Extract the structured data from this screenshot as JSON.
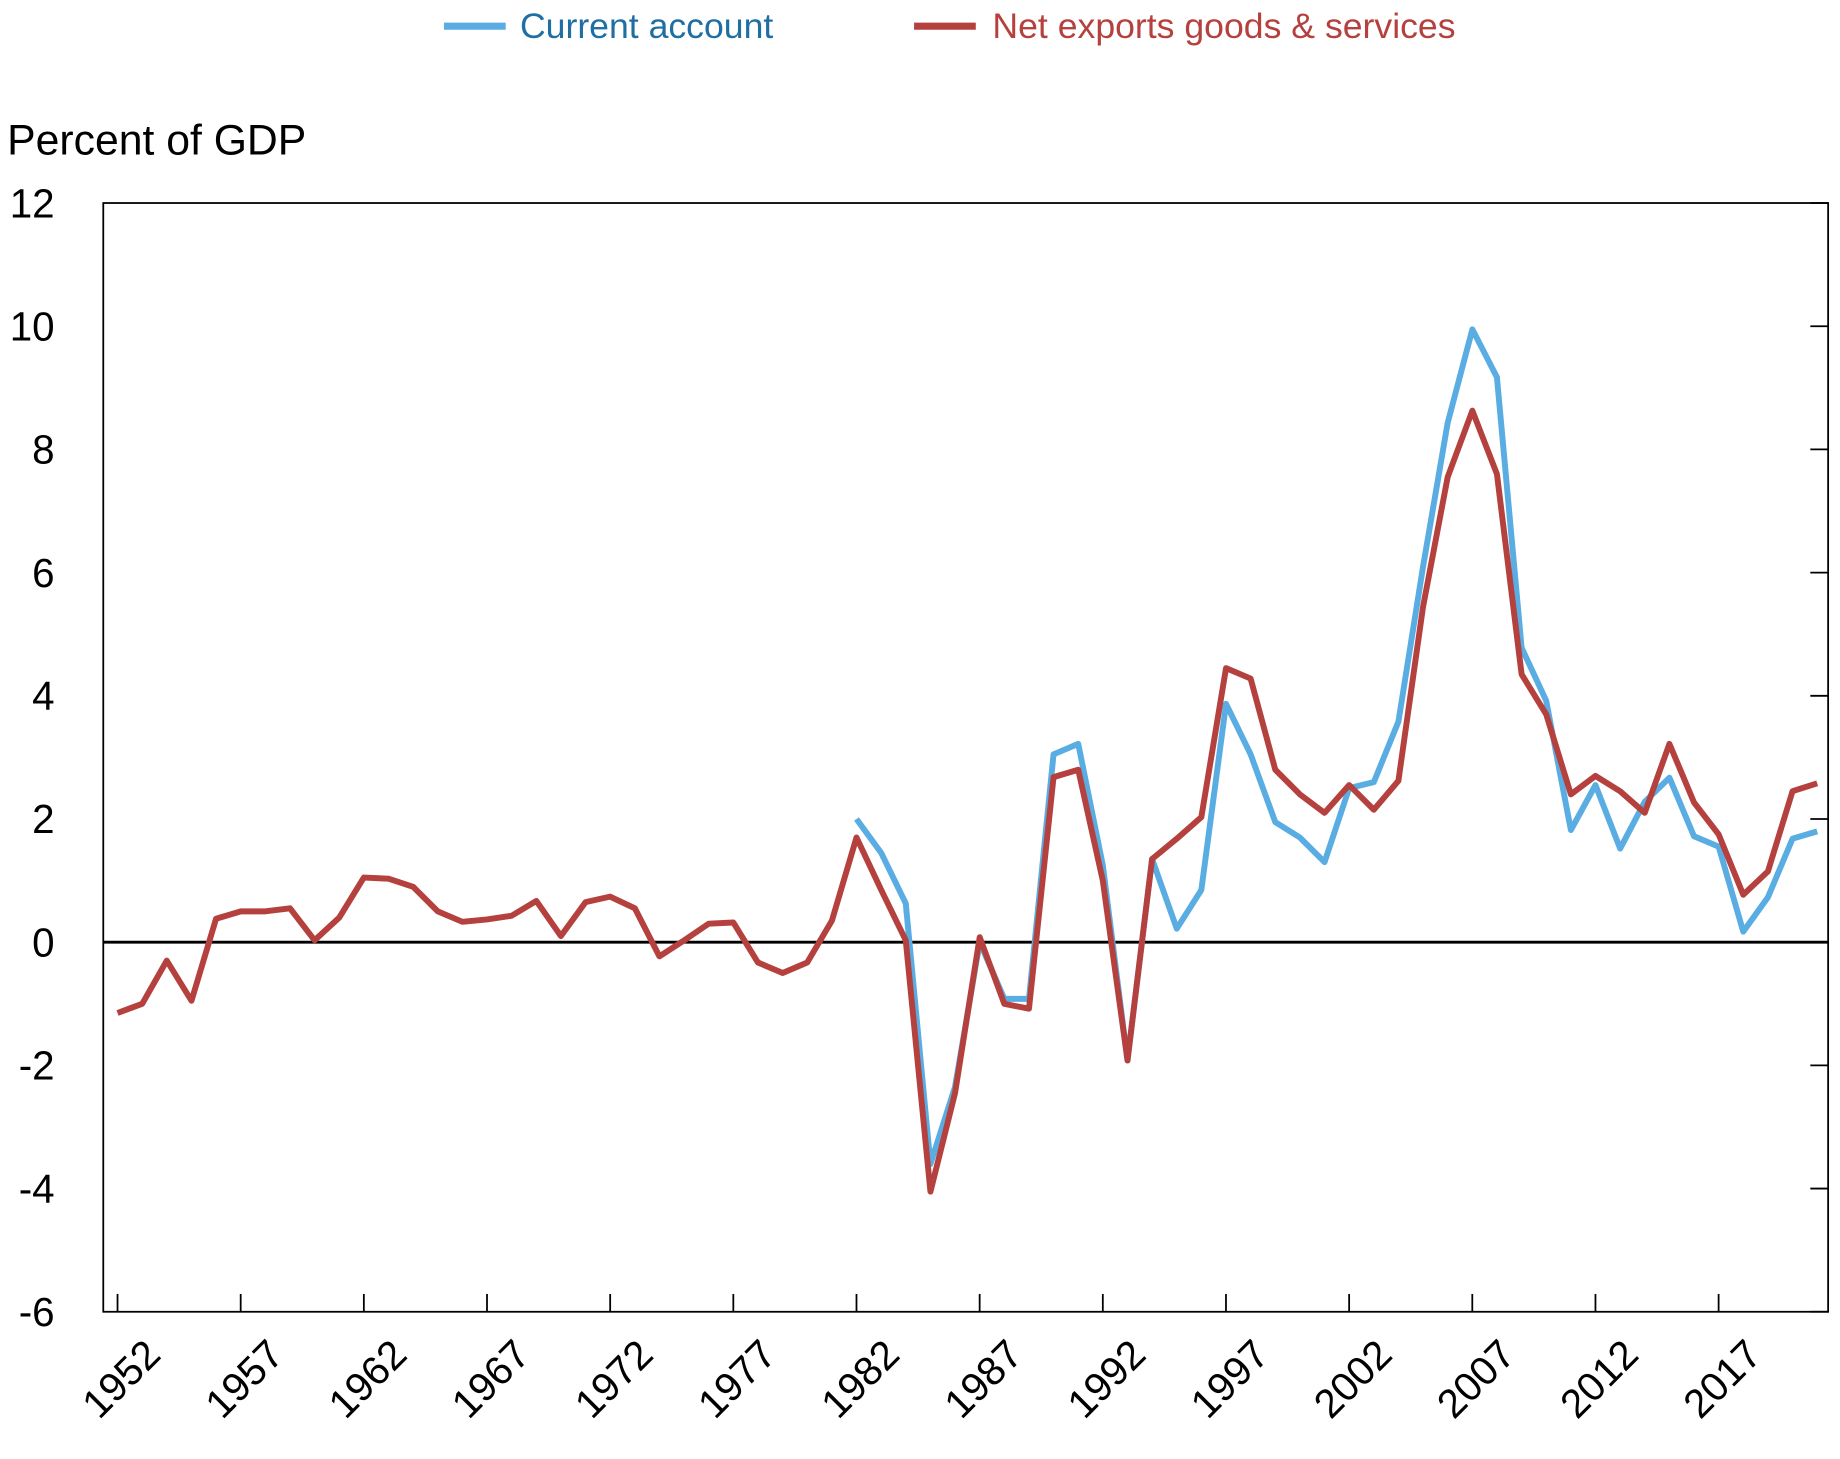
{
  "chart_data": {
    "type": "line",
    "ylabel": "Percent of GDP",
    "ylim": [
      -6,
      12
    ],
    "yticks": [
      "12",
      "10",
      "8",
      "6",
      "4",
      "2",
      "0",
      "-2",
      "-4",
      "-6"
    ],
    "xlim": [
      1952,
      2021
    ],
    "xticks": [
      "1952",
      "1957",
      "1962",
      "1967",
      "1972",
      "1977",
      "1982",
      "1987",
      "1992",
      "1997",
      "2002",
      "2007",
      "2012",
      "2017"
    ],
    "grid": false,
    "zero_line": true,
    "legend_position": "top-center",
    "series": [
      {
        "name": "Current account",
        "color": "#5aade2",
        "start_year": 1982,
        "values": [
          2.0,
          1.45,
          0.63,
          -3.6,
          -2.35,
          0.0,
          -0.92,
          -0.92,
          3.05,
          3.22,
          1.25,
          -1.92,
          1.35,
          0.22,
          0.85,
          3.87,
          3.05,
          1.95,
          1.7,
          1.3,
          2.5,
          2.6,
          3.58,
          6.1,
          8.43,
          9.95,
          9.17,
          4.78,
          3.92,
          1.82,
          2.55,
          1.52,
          2.28,
          2.67,
          1.72,
          1.55,
          0.17,
          0.73,
          1.68,
          1.8
        ]
      },
      {
        "name": "Net exports goods & services",
        "color": "#b5413f",
        "start_year": 1952,
        "values": [
          -1.15,
          -1.0,
          -0.3,
          -0.95,
          0.38,
          0.5,
          0.5,
          0.55,
          0.03,
          0.4,
          1.05,
          1.03,
          0.9,
          0.5,
          0.33,
          0.37,
          0.43,
          0.67,
          0.1,
          0.65,
          0.74,
          0.55,
          -0.23,
          0.03,
          0.3,
          0.32,
          -0.33,
          -0.5,
          -0.33,
          0.35,
          1.7,
          0.85,
          0.03,
          -4.05,
          -2.45,
          0.08,
          -1.0,
          -1.08,
          2.68,
          2.8,
          1.0,
          -1.92,
          1.35,
          1.68,
          2.03,
          4.45,
          4.28,
          2.8,
          2.4,
          2.1,
          2.55,
          2.15,
          2.62,
          5.45,
          7.55,
          8.63,
          7.6,
          4.35,
          3.7,
          2.4,
          2.7,
          2.45,
          2.1,
          3.22,
          2.27,
          1.75,
          0.77,
          1.15,
          2.45,
          2.58
        ]
      }
    ],
    "legend_text_colors": [
      "#1f6fa3",
      "#b5413f"
    ]
  }
}
